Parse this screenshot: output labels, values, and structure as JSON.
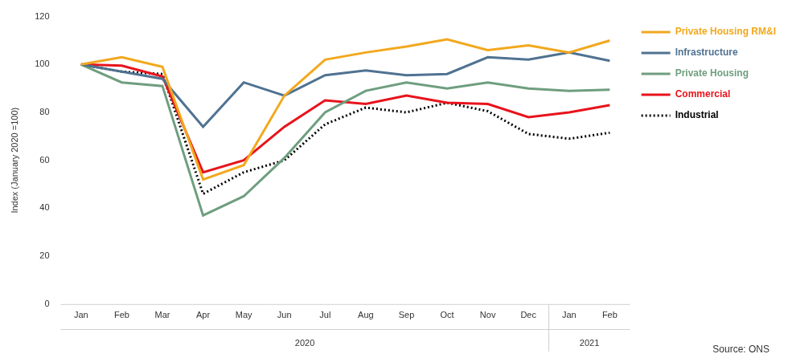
{
  "chart_data": {
    "type": "line",
    "categories": [
      "Jan",
      "Feb",
      "Mar",
      "Apr",
      "May",
      "Jun",
      "Jul",
      "Aug",
      "Sep",
      "Oct",
      "Nov",
      "Dec",
      "Jan",
      "Feb"
    ],
    "category_groups": [
      "2020",
      "2020",
      "2020",
      "2020",
      "2020",
      "2020",
      "2020",
      "2020",
      "2020",
      "2020",
      "2020",
      "2020",
      "2021",
      "2021"
    ],
    "y_label": "Index (January 2020 =100)",
    "source": "Source: ONS",
    "ylim": [
      0,
      120
    ],
    "yticks": [
      0,
      20,
      40,
      60,
      80,
      100,
      120
    ],
    "grid": false,
    "legend": "right",
    "series": [
      {
        "name": "Private Housing RM&I",
        "color": "#f2a81d",
        "line_style": "solid",
        "values": [
          100,
          103,
          99,
          52,
          58,
          87,
          102,
          105,
          107.5,
          110.5,
          106,
          108,
          105,
          110
        ]
      },
      {
        "name": "Infrastructure",
        "color": "#4f7291",
        "line_style": "solid",
        "values": [
          100,
          97,
          94,
          74,
          92.5,
          87,
          95.5,
          97.5,
          95.5,
          96,
          103,
          102,
          105,
          101.5
        ]
      },
      {
        "name": "Private Housing",
        "color": "#6f9e7f",
        "line_style": "solid",
        "values": [
          100,
          92.5,
          91,
          37,
          45,
          61,
          80,
          89,
          92.5,
          90,
          92.5,
          90,
          89,
          89.5
        ]
      },
      {
        "name": "Commercial",
        "color": "#e8131b",
        "line_style": "solid",
        "values": [
          100,
          99.5,
          95,
          55,
          60,
          74,
          85,
          83.5,
          87,
          84,
          83.5,
          78,
          80,
          83
        ]
      },
      {
        "name": "Industrial",
        "color": "#000000",
        "line_style": "dotted",
        "values": [
          100,
          97,
          96,
          46,
          55,
          60,
          75,
          82,
          80,
          84,
          80.5,
          71,
          69,
          71.5
        ]
      }
    ]
  }
}
